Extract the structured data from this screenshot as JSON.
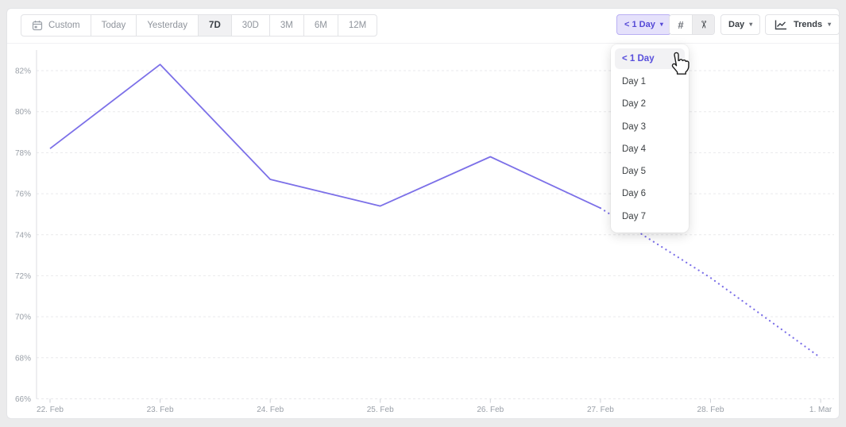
{
  "toolbar": {
    "range_buttons": [
      {
        "label": "Custom",
        "icon": "calendar-icon",
        "selected": false
      },
      {
        "label": "Today",
        "selected": false
      },
      {
        "label": "Yesterday",
        "selected": false
      },
      {
        "label": "7D",
        "selected": true
      },
      {
        "label": "30D",
        "selected": false
      },
      {
        "label": "3M",
        "selected": false
      },
      {
        "label": "6M",
        "selected": false
      },
      {
        "label": "12M",
        "selected": false
      }
    ],
    "retention_dropdown": {
      "label": "< 1 Day",
      "caret": "▾"
    },
    "view_toggle": {
      "hash_glyph": "#",
      "scissors_glyph": "✂",
      "selected": "scissors"
    },
    "interval_dropdown": {
      "label": "Day",
      "caret": "▾"
    },
    "trends_dropdown": {
      "label": "Trends",
      "caret": "▾",
      "icon": "line-chart-icon"
    }
  },
  "dropdown_menu": {
    "selected": "< 1 Day",
    "items": [
      "< 1 Day",
      "Day 1",
      "Day 2",
      "Day 3",
      "Day 4",
      "Day 5",
      "Day 6",
      "Day 7"
    ]
  },
  "chart_data": {
    "type": "line",
    "title": "",
    "x": [
      "22. Feb",
      "23. Feb",
      "24. Feb",
      "25. Feb",
      "26. Feb",
      "27. Feb",
      "28. Feb",
      "1. Mar"
    ],
    "y_ticks": [
      82,
      80,
      78,
      76,
      74,
      72,
      70,
      68,
      66
    ],
    "y_unit": "%",
    "ylim": [
      66,
      83
    ],
    "grid": "dashed-horizontal",
    "legend": "none",
    "series": [
      {
        "name": "retention",
        "style": "solid",
        "color": "#7c70e8",
        "points": [
          [
            0,
            78.2
          ],
          [
            1,
            82.3
          ],
          [
            2,
            76.7
          ],
          [
            3,
            75.4
          ],
          [
            4,
            77.8
          ],
          [
            5,
            75.3
          ]
        ]
      },
      {
        "name": "retention-projected",
        "style": "dotted",
        "color": "#7c70e8",
        "points": [
          [
            5,
            75.3
          ],
          [
            6,
            71.9
          ],
          [
            7,
            68.0
          ]
        ]
      }
    ]
  },
  "colors": {
    "accent_purple": "#5549d6",
    "accent_pill_bg": "#e5e1fb",
    "line_purple": "#7c70e8",
    "grid_gray": "#e9e9ec",
    "label_gray": "#9aa0a8",
    "page_bg": "#ebebec"
  }
}
